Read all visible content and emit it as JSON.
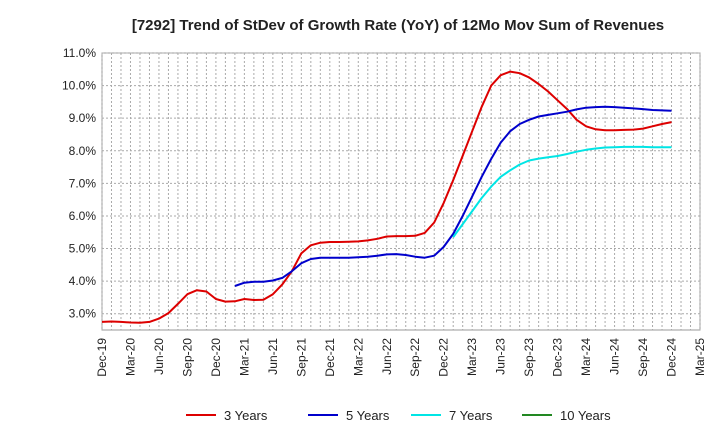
{
  "chart_data": {
    "type": "line",
    "title": "[7292]  Trend of StDev of Growth Rate (YoY) of 12Mo Mov Sum of Revenues",
    "xlabel": "",
    "ylabel": "",
    "grid": true,
    "legend_position": "bottom",
    "ylim": [
      2.5,
      11.0
    ],
    "y_ticks": [
      3.0,
      4.0,
      5.0,
      6.0,
      7.0,
      8.0,
      9.0,
      10.0,
      11.0
    ],
    "y_tick_labels": [
      "3.0%",
      "4.0%",
      "5.0%",
      "6.0%",
      "7.0%",
      "8.0%",
      "9.0%",
      "10.0%",
      "11.0%"
    ],
    "x_tick_labels": [
      "Dec-19",
      "Mar-20",
      "Jun-20",
      "Sep-20",
      "Dec-20",
      "Mar-21",
      "Jun-21",
      "Sep-21",
      "Dec-21",
      "Mar-22",
      "Jun-22",
      "Sep-22",
      "Dec-22",
      "Mar-23",
      "Jun-23",
      "Sep-23",
      "Dec-23",
      "Mar-24",
      "Jun-24",
      "Sep-24",
      "Dec-24",
      "Mar-25"
    ],
    "x_unit": "months since Dec-19",
    "series": [
      {
        "name": "3 Years",
        "color": "#dd0000",
        "x": [
          0,
          1,
          2,
          3,
          4,
          5,
          6,
          7,
          8,
          9,
          10,
          11,
          12,
          13,
          14,
          15,
          16,
          17,
          18,
          19,
          20,
          21,
          22,
          23,
          24,
          25,
          26,
          27,
          28,
          29,
          30,
          31,
          32,
          33,
          34,
          35,
          36,
          37,
          38,
          39,
          40,
          41,
          42,
          43,
          44,
          45,
          46,
          47,
          48,
          49,
          50,
          51,
          52,
          53,
          54,
          55,
          56,
          57,
          58,
          59,
          60
        ],
        "values": [
          2.75,
          2.76,
          2.75,
          2.73,
          2.72,
          2.75,
          2.85,
          3.02,
          3.3,
          3.6,
          3.72,
          3.68,
          3.45,
          3.37,
          3.38,
          3.45,
          3.42,
          3.43,
          3.6,
          3.9,
          4.3,
          4.85,
          5.1,
          5.18,
          5.2,
          5.2,
          5.21,
          5.22,
          5.25,
          5.3,
          5.37,
          5.38,
          5.38,
          5.39,
          5.48,
          5.8,
          6.4,
          7.1,
          7.85,
          8.6,
          9.35,
          10.0,
          10.32,
          10.43,
          10.38,
          10.25,
          10.05,
          9.82,
          9.55,
          9.28,
          8.95,
          8.75,
          8.66,
          8.63,
          8.63,
          8.64,
          8.65,
          8.68,
          8.75,
          8.82,
          8.88
        ]
      },
      {
        "name": "5 Years",
        "color": "#0000cc",
        "x": [
          14,
          15,
          16,
          17,
          18,
          19,
          20,
          21,
          22,
          23,
          24,
          25,
          26,
          27,
          28,
          29,
          30,
          31,
          32,
          33,
          34,
          35,
          36,
          37,
          38,
          39,
          40,
          41,
          42,
          43,
          44,
          45,
          46,
          47,
          48,
          49,
          50,
          51,
          52,
          53,
          54,
          55,
          56,
          57,
          58,
          59,
          60
        ],
        "values": [
          3.85,
          3.95,
          3.98,
          3.98,
          4.02,
          4.1,
          4.3,
          4.55,
          4.68,
          4.72,
          4.72,
          4.72,
          4.72,
          4.73,
          4.75,
          4.78,
          4.82,
          4.83,
          4.8,
          4.75,
          4.72,
          4.78,
          5.05,
          5.45,
          6.0,
          6.6,
          7.2,
          7.75,
          8.25,
          8.6,
          8.82,
          8.95,
          9.05,
          9.1,
          9.15,
          9.2,
          9.27,
          9.32,
          9.34,
          9.35,
          9.34,
          9.32,
          9.3,
          9.28,
          9.25,
          9.24,
          9.23
        ]
      },
      {
        "name": "7 Years",
        "color": "#00e5e5",
        "x": [
          37,
          38,
          39,
          40,
          41,
          42,
          43,
          44,
          45,
          46,
          47,
          48,
          49,
          50,
          51,
          52,
          53,
          54,
          55,
          56,
          57,
          58,
          59,
          60
        ],
        "values": [
          5.35,
          5.75,
          6.15,
          6.55,
          6.9,
          7.2,
          7.4,
          7.58,
          7.7,
          7.76,
          7.8,
          7.84,
          7.9,
          7.97,
          8.03,
          8.07,
          8.1,
          8.11,
          8.12,
          8.12,
          8.12,
          8.11,
          8.11,
          8.11
        ]
      },
      {
        "name": "10 Years",
        "color": "#228822",
        "x": [],
        "values": []
      }
    ]
  }
}
